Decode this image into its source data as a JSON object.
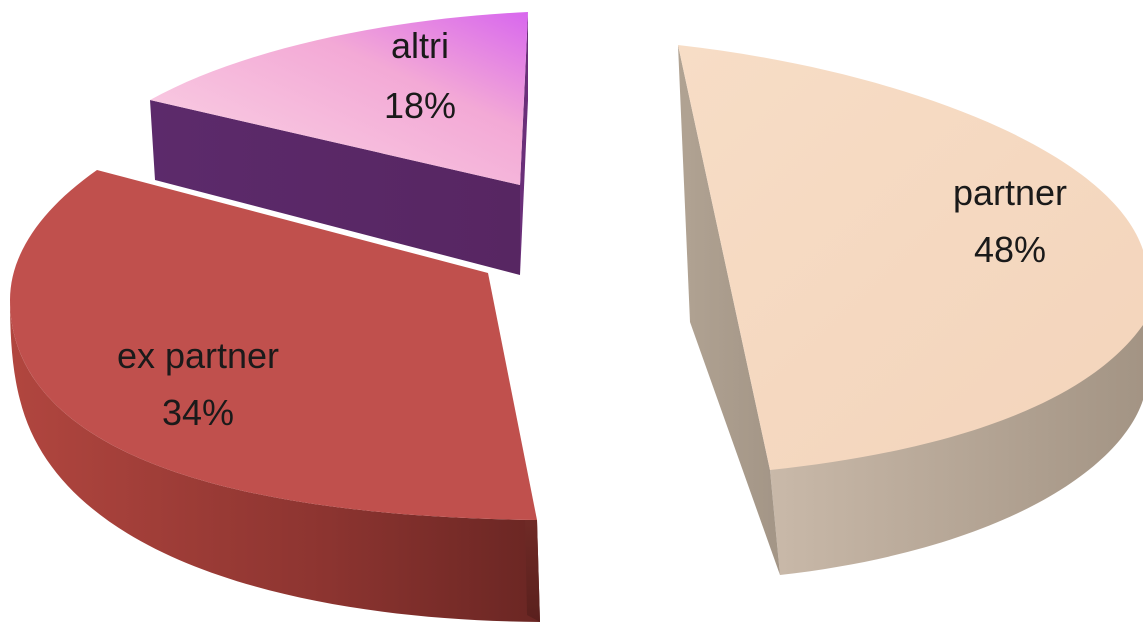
{
  "chart_data": {
    "type": "pie",
    "style": "3d-exploded",
    "categories": [
      "partner",
      "ex partner",
      "altri"
    ],
    "values": [
      48,
      34,
      18
    ],
    "value_labels": [
      "48%",
      "34%",
      "18%"
    ],
    "colors": {
      "partner": "#f5dac3",
      "ex partner": "#c0504d",
      "altri": "#f7c0e0"
    },
    "side_colors": {
      "partner": "#a89a8d",
      "ex partner": "#7a2e2b",
      "altri": "#5a2766"
    },
    "legend": "none",
    "title": ""
  }
}
